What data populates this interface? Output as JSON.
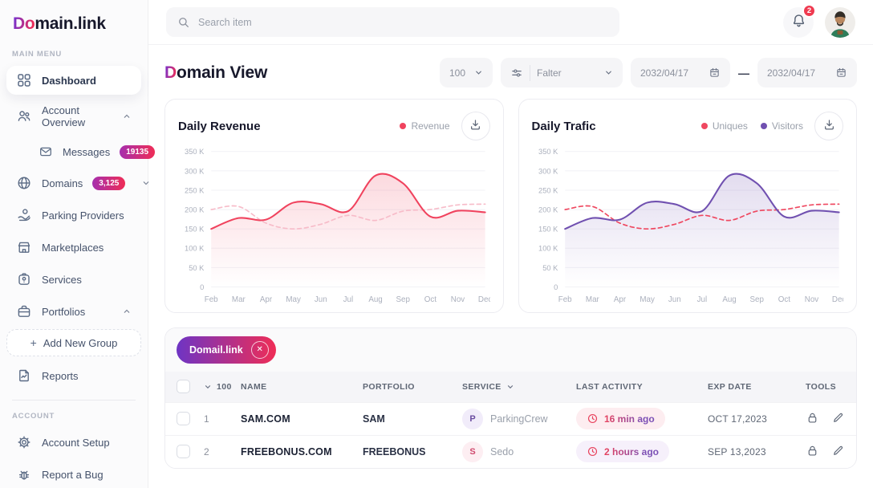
{
  "app": {
    "logo_gradient_part": "Do",
    "logo_rest": "main.link"
  },
  "topbar": {
    "search_placeholder": "Search item",
    "notification_count": "2"
  },
  "sidebar": {
    "main_menu_label": "MAIN MENU",
    "account_label": "ACCOUNT",
    "items": [
      {
        "label": "Dashboard"
      },
      {
        "label": "Account Overview"
      },
      {
        "label": "Messages",
        "badge": "19135"
      },
      {
        "label": "Domains",
        "badge": "3,125"
      },
      {
        "label": "Parking Providers"
      },
      {
        "label": "Marketplaces"
      },
      {
        "label": "Services"
      },
      {
        "label": "Portfolios"
      },
      {
        "label": "Add New Group",
        "plus": "+"
      },
      {
        "label": "Reports"
      },
      {
        "label": "Account Setup"
      },
      {
        "label": "Report a Bug"
      }
    ]
  },
  "header": {
    "title_gradient_part": "D",
    "title_rest": "omain View",
    "page_size": "100",
    "filter_label": "Falter",
    "date_from": "2032/04/17",
    "date_separator": "—",
    "date_to": "2032/04/17"
  },
  "chart_data": [
    {
      "type": "line",
      "title": "Daily Revenue",
      "categories": [
        "Feb",
        "Mar",
        "Apr",
        "May",
        "Jun",
        "Jul",
        "Aug",
        "Sep",
        "Oct",
        "Nov",
        "Dec"
      ],
      "ylim": [
        0,
        350000
      ],
      "yticks": [
        {
          "label": "350 K",
          "value": 350000
        },
        {
          "label": "300 K",
          "value": 300000
        },
        {
          "label": "250 K",
          "value": 250000
        },
        {
          "label": "200 K",
          "value": 200000
        },
        {
          "label": "150 K",
          "value": 150000
        },
        {
          "label": "100 K",
          "value": 100000
        },
        {
          "label": "50 K",
          "value": 50000
        },
        {
          "label": "0",
          "value": 0
        }
      ],
      "grid": true,
      "legend_position": "top-right",
      "legend": [
        {
          "label": "Revenue",
          "color": "#f0435e"
        }
      ],
      "series": [
        {
          "name": "comparison-dashed",
          "color": "#f7bcc9",
          "style": "dashed",
          "fill": false,
          "values": [
            200000,
            208000,
            165000,
            150000,
            162000,
            185000,
            172000,
            196000,
            200000,
            212000,
            214000
          ]
        },
        {
          "name": "Revenue",
          "color": "#f0435e",
          "style": "solid",
          "fill": true,
          "values": [
            150000,
            178000,
            174000,
            218000,
            214000,
            196000,
            288000,
            268000,
            182000,
            197000,
            193000
          ]
        }
      ]
    },
    {
      "type": "line",
      "title": "Daily Trafic",
      "categories": [
        "Feb",
        "Mar",
        "Apr",
        "May",
        "Jun",
        "Jul",
        "Aug",
        "Sep",
        "Oct",
        "Nov",
        "Dec"
      ],
      "ylim": [
        0,
        350000
      ],
      "yticks": [
        {
          "label": "350 K",
          "value": 350000
        },
        {
          "label": "300 K",
          "value": 300000
        },
        {
          "label": "250 K",
          "value": 250000
        },
        {
          "label": "200 K",
          "value": 200000
        },
        {
          "label": "150 K",
          "value": 150000
        },
        {
          "label": "100 K",
          "value": 100000
        },
        {
          "label": "50 K",
          "value": 50000
        },
        {
          "label": "0",
          "value": 0
        }
      ],
      "grid": true,
      "legend_position": "top-right",
      "legend": [
        {
          "label": "Uniques",
          "color": "#ef4860"
        },
        {
          "label": "Visitors",
          "color": "#7050b0"
        }
      ],
      "series": [
        {
          "name": "Uniques",
          "color": "#ef4860",
          "style": "dashed",
          "fill": false,
          "values": [
            200000,
            208000,
            165000,
            150000,
            162000,
            185000,
            172000,
            196000,
            200000,
            212000,
            214000
          ]
        },
        {
          "name": "Visitors",
          "color": "#7050b0",
          "style": "solid",
          "fill": true,
          "values": [
            150000,
            178000,
            174000,
            218000,
            214000,
            196000,
            288000,
            268000,
            182000,
            197000,
            193000
          ]
        }
      ]
    }
  ],
  "table": {
    "chip_label": "Domail.link",
    "columns": {
      "count": "100",
      "name": "NAME",
      "portfolio": "PORTFOLIO",
      "service": "SERVICE",
      "last_activity": "LAST ACTIVITY",
      "exp_date": "EXP DATE",
      "tools": "TOOLS"
    },
    "rows": [
      {
        "num": "1",
        "name": "SAM.COM",
        "portfolio": "SAM",
        "service_initial": "P",
        "service": "ParkingCrew",
        "last_activity": "16 min ago",
        "exp_date": "OCT 17,2023"
      },
      {
        "num": "2",
        "name": "FREEBONUS.COM",
        "portfolio": "FREEBONUS",
        "service_initial": "S",
        "service": "Sedo",
        "last_activity": "2 hours ago",
        "exp_date": "SEP 13,2023"
      }
    ]
  },
  "colors": {
    "accent_gradient_start": "#7a30c9",
    "accent_gradient_end": "#ef2d56",
    "revenue_line": "#f0435e",
    "comparison_dashed": "#f7bcc9",
    "uniques_line": "#ef4860",
    "visitors_line": "#7050b0",
    "notification_badge": "#ef3a50"
  }
}
